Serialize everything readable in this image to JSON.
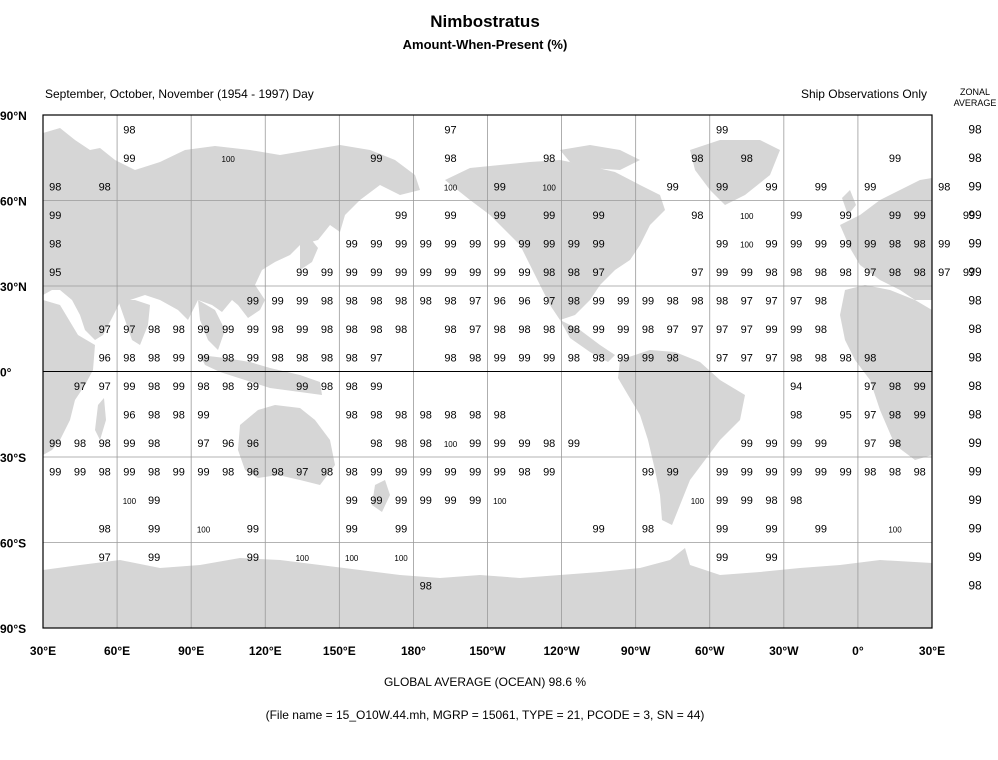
{
  "header": {
    "title": "Nimbostratus",
    "subtitle": "Amount-When-Present (%)",
    "season": "September, October, November (1954 - 1997) Day",
    "source": "Ship Observations Only",
    "zonal_line1": "ZONAL",
    "zonal_line2": "AVERAGE"
  },
  "footer": {
    "global_average": "GLOBAL AVERAGE (OCEAN)   98.6 %",
    "file_info": "(File name = 15_O10W.44.mh, MGRP = 15061, TYPE = 21, PCODE = 3, SN = 44)"
  },
  "axes": {
    "lat_labels": [
      "90°N",
      "60°N",
      "30°N",
      "0°",
      "30°S",
      "60°S",
      "90°S"
    ],
    "lon_labels": [
      "30°E",
      "60°E",
      "90°E",
      "120°E",
      "150°E",
      "180°",
      "150°W",
      "120°W",
      "90°W",
      "60°W",
      "30°W",
      "0°",
      "30°E"
    ]
  },
  "colors": {
    "land": "#d6d6d6",
    "grid": "#9a9a9a"
  },
  "zonal_average": [
    "98",
    "98",
    "99",
    "99",
    "99",
    "99",
    "98",
    "98",
    "98",
    "98",
    "98",
    "99",
    "99",
    "99",
    "99",
    "99",
    "98"
  ],
  "grid_values": {
    "lon_start": 40,
    "lon_step": 10,
    "lat_start": 85,
    "lat_step": -10,
    "rows": [
      [
        "",
        "",
        "",
        "98",
        "",
        "",
        "",
        "",
        "",
        "",
        "",
        "",
        "",
        "",
        "",
        "",
        "97",
        "",
        "",
        "",
        "",
        "",
        "",
        "",
        "",
        "",
        "",
        "99",
        "",
        "",
        "",
        "",
        "",
        "",
        "",
        "",
        ""
      ],
      [
        "",
        "",
        "",
        "99",
        "",
        "",
        "",
        "100",
        "",
        "",
        "",
        "",
        "",
        "99",
        "",
        "",
        "98",
        "",
        "",
        "",
        "98",
        "",
        "",
        "",
        "",
        "",
        "98",
        "",
        "98",
        "",
        "",
        "",
        "",
        "",
        "99",
        "",
        ""
      ],
      [
        "98",
        "",
        "98",
        "",
        "",
        "",
        "",
        "",
        "",
        "",
        "",
        "",
        "",
        "",
        "",
        "",
        "100",
        "",
        "99",
        "",
        "100",
        "",
        "",
        "",
        "",
        "99",
        "",
        "99",
        "",
        "99",
        "",
        "99",
        "",
        "99",
        "",
        "",
        "98"
      ],
      [
        "99",
        "",
        "",
        "",
        "",
        "",
        "",
        "",
        "",
        "",
        "",
        "",
        "",
        "",
        "99",
        "",
        "99",
        "",
        "99",
        "",
        "99",
        "",
        "99",
        "",
        "",
        "",
        "98",
        "",
        "100",
        "",
        "99",
        "",
        "99",
        "",
        "99",
        "99",
        "",
        "99"
      ],
      [
        "98",
        "",
        "",
        "",
        "",
        "",
        "",
        "",
        "",
        "",
        "",
        "",
        "99",
        "99",
        "99",
        "99",
        "99",
        "99",
        "99",
        "99",
        "99",
        "99",
        "99",
        "",
        "",
        "",
        "",
        "99",
        "100",
        "99",
        "99",
        "99",
        "99",
        "99",
        "98",
        "98",
        "99"
      ],
      [
        "95",
        "",
        "",
        "",
        "",
        "",
        "",
        "",
        "",
        "",
        "99",
        "99",
        "99",
        "99",
        "99",
        "99",
        "99",
        "99",
        "99",
        "99",
        "98",
        "98",
        "97",
        "",
        "",
        "",
        "97",
        "99",
        "99",
        "98",
        "98",
        "98",
        "98",
        "97",
        "98",
        "98",
        "97",
        "97"
      ],
      [
        "",
        "",
        "",
        "",
        "",
        "",
        "",
        "",
        "99",
        "99",
        "99",
        "98",
        "98",
        "98",
        "98",
        "98",
        "98",
        "97",
        "96",
        "96",
        "97",
        "98",
        "99",
        "99",
        "99",
        "98",
        "98",
        "98",
        "97",
        "97",
        "97",
        "98",
        "",
        "",
        "",
        ""
      ],
      [
        "",
        "",
        "97",
        "97",
        "98",
        "98",
        "99",
        "99",
        "99",
        "98",
        "99",
        "98",
        "98",
        "98",
        "98",
        "",
        "98",
        "97",
        "98",
        "98",
        "98",
        "98",
        "99",
        "99",
        "98",
        "97",
        "97",
        "97",
        "97",
        "99",
        "99",
        "98",
        "",
        "",
        "",
        ""
      ],
      [
        "",
        "",
        "96",
        "98",
        "98",
        "99",
        "99",
        "98",
        "99",
        "98",
        "98",
        "98",
        "98",
        "97",
        "",
        "",
        "98",
        "98",
        "99",
        "99",
        "99",
        "98",
        "98",
        "99",
        "99",
        "98",
        "",
        "97",
        "97",
        "97",
        "98",
        "98",
        "98",
        "98",
        "",
        ""
      ],
      [
        "",
        "97",
        "97",
        "99",
        "98",
        "99",
        "98",
        "98",
        "99",
        "",
        "99",
        "98",
        "98",
        "99",
        "",
        "",
        "",
        "",
        "",
        "",
        "",
        "",
        "",
        "",
        "",
        "",
        "",
        "",
        "",
        "",
        "94",
        "",
        "",
        "97",
        "98",
        "99"
      ],
      [
        "",
        "",
        "",
        "96",
        "98",
        "98",
        "99",
        "",
        "",
        "",
        "",
        "",
        "98",
        "98",
        "98",
        "98",
        "98",
        "98",
        "98",
        "",
        "",
        "",
        "",
        "",
        "",
        "",
        "",
        "",
        "",
        "",
        "98",
        "",
        "95",
        "97",
        "98",
        "99"
      ],
      [
        "99",
        "98",
        "98",
        "99",
        "98",
        "",
        "97",
        "96",
        "96",
        "",
        "",
        "",
        "",
        "98",
        "98",
        "98",
        "100",
        "99",
        "99",
        "99",
        "98",
        "99",
        "",
        "",
        "",
        "",
        "",
        "",
        "99",
        "99",
        "99",
        "99",
        "",
        "97",
        "98",
        ""
      ],
      [
        "99",
        "99",
        "98",
        "99",
        "98",
        "99",
        "99",
        "98",
        "96",
        "98",
        "97",
        "98",
        "98",
        "99",
        "99",
        "99",
        "99",
        "99",
        "99",
        "98",
        "99",
        "",
        "",
        "",
        "99",
        "99",
        "",
        "99",
        "99",
        "99",
        "99",
        "99",
        "99",
        "98",
        "98",
        "98"
      ],
      [
        "",
        "",
        "",
        "100",
        "99",
        "",
        "",
        "",
        "",
        "",
        "",
        "",
        "99",
        "99",
        "99",
        "99",
        "99",
        "99",
        "100",
        "",
        "",
        "",
        "",
        "",
        "",
        "",
        "100",
        "99",
        "99",
        "98",
        "98",
        "",
        "",
        "",
        "",
        ""
      ],
      [
        "",
        "",
        "98",
        "",
        "99",
        "",
        "100",
        "",
        "99",
        "",
        "",
        "",
        "99",
        "",
        "99",
        "",
        "",
        "",
        "",
        "",
        "",
        "",
        "99",
        "",
        "98",
        "",
        "",
        "99",
        "",
        "99",
        "",
        "99",
        "",
        "",
        "100",
        ""
      ],
      [
        "",
        "",
        "97",
        "",
        "99",
        "",
        "",
        "",
        "99",
        "",
        "100",
        "",
        "100",
        "",
        "100",
        "",
        "",
        "",
        "",
        "",
        "",
        "",
        "",
        "",
        "",
        "",
        "",
        "99",
        "",
        "99",
        "",
        "",
        "",
        "",
        "",
        ""
      ],
      [
        "",
        "",
        "",
        "",
        "",
        "",
        "",
        "",
        "",
        "",
        "",
        "",
        "",
        "",
        "",
        "98",
        "",
        "",
        "",
        "",
        "",
        "",
        "",
        "",
        "",
        "",
        "",
        "",
        "",
        "",
        "",
        "",
        "",
        "",
        "",
        ""
      ]
    ]
  }
}
